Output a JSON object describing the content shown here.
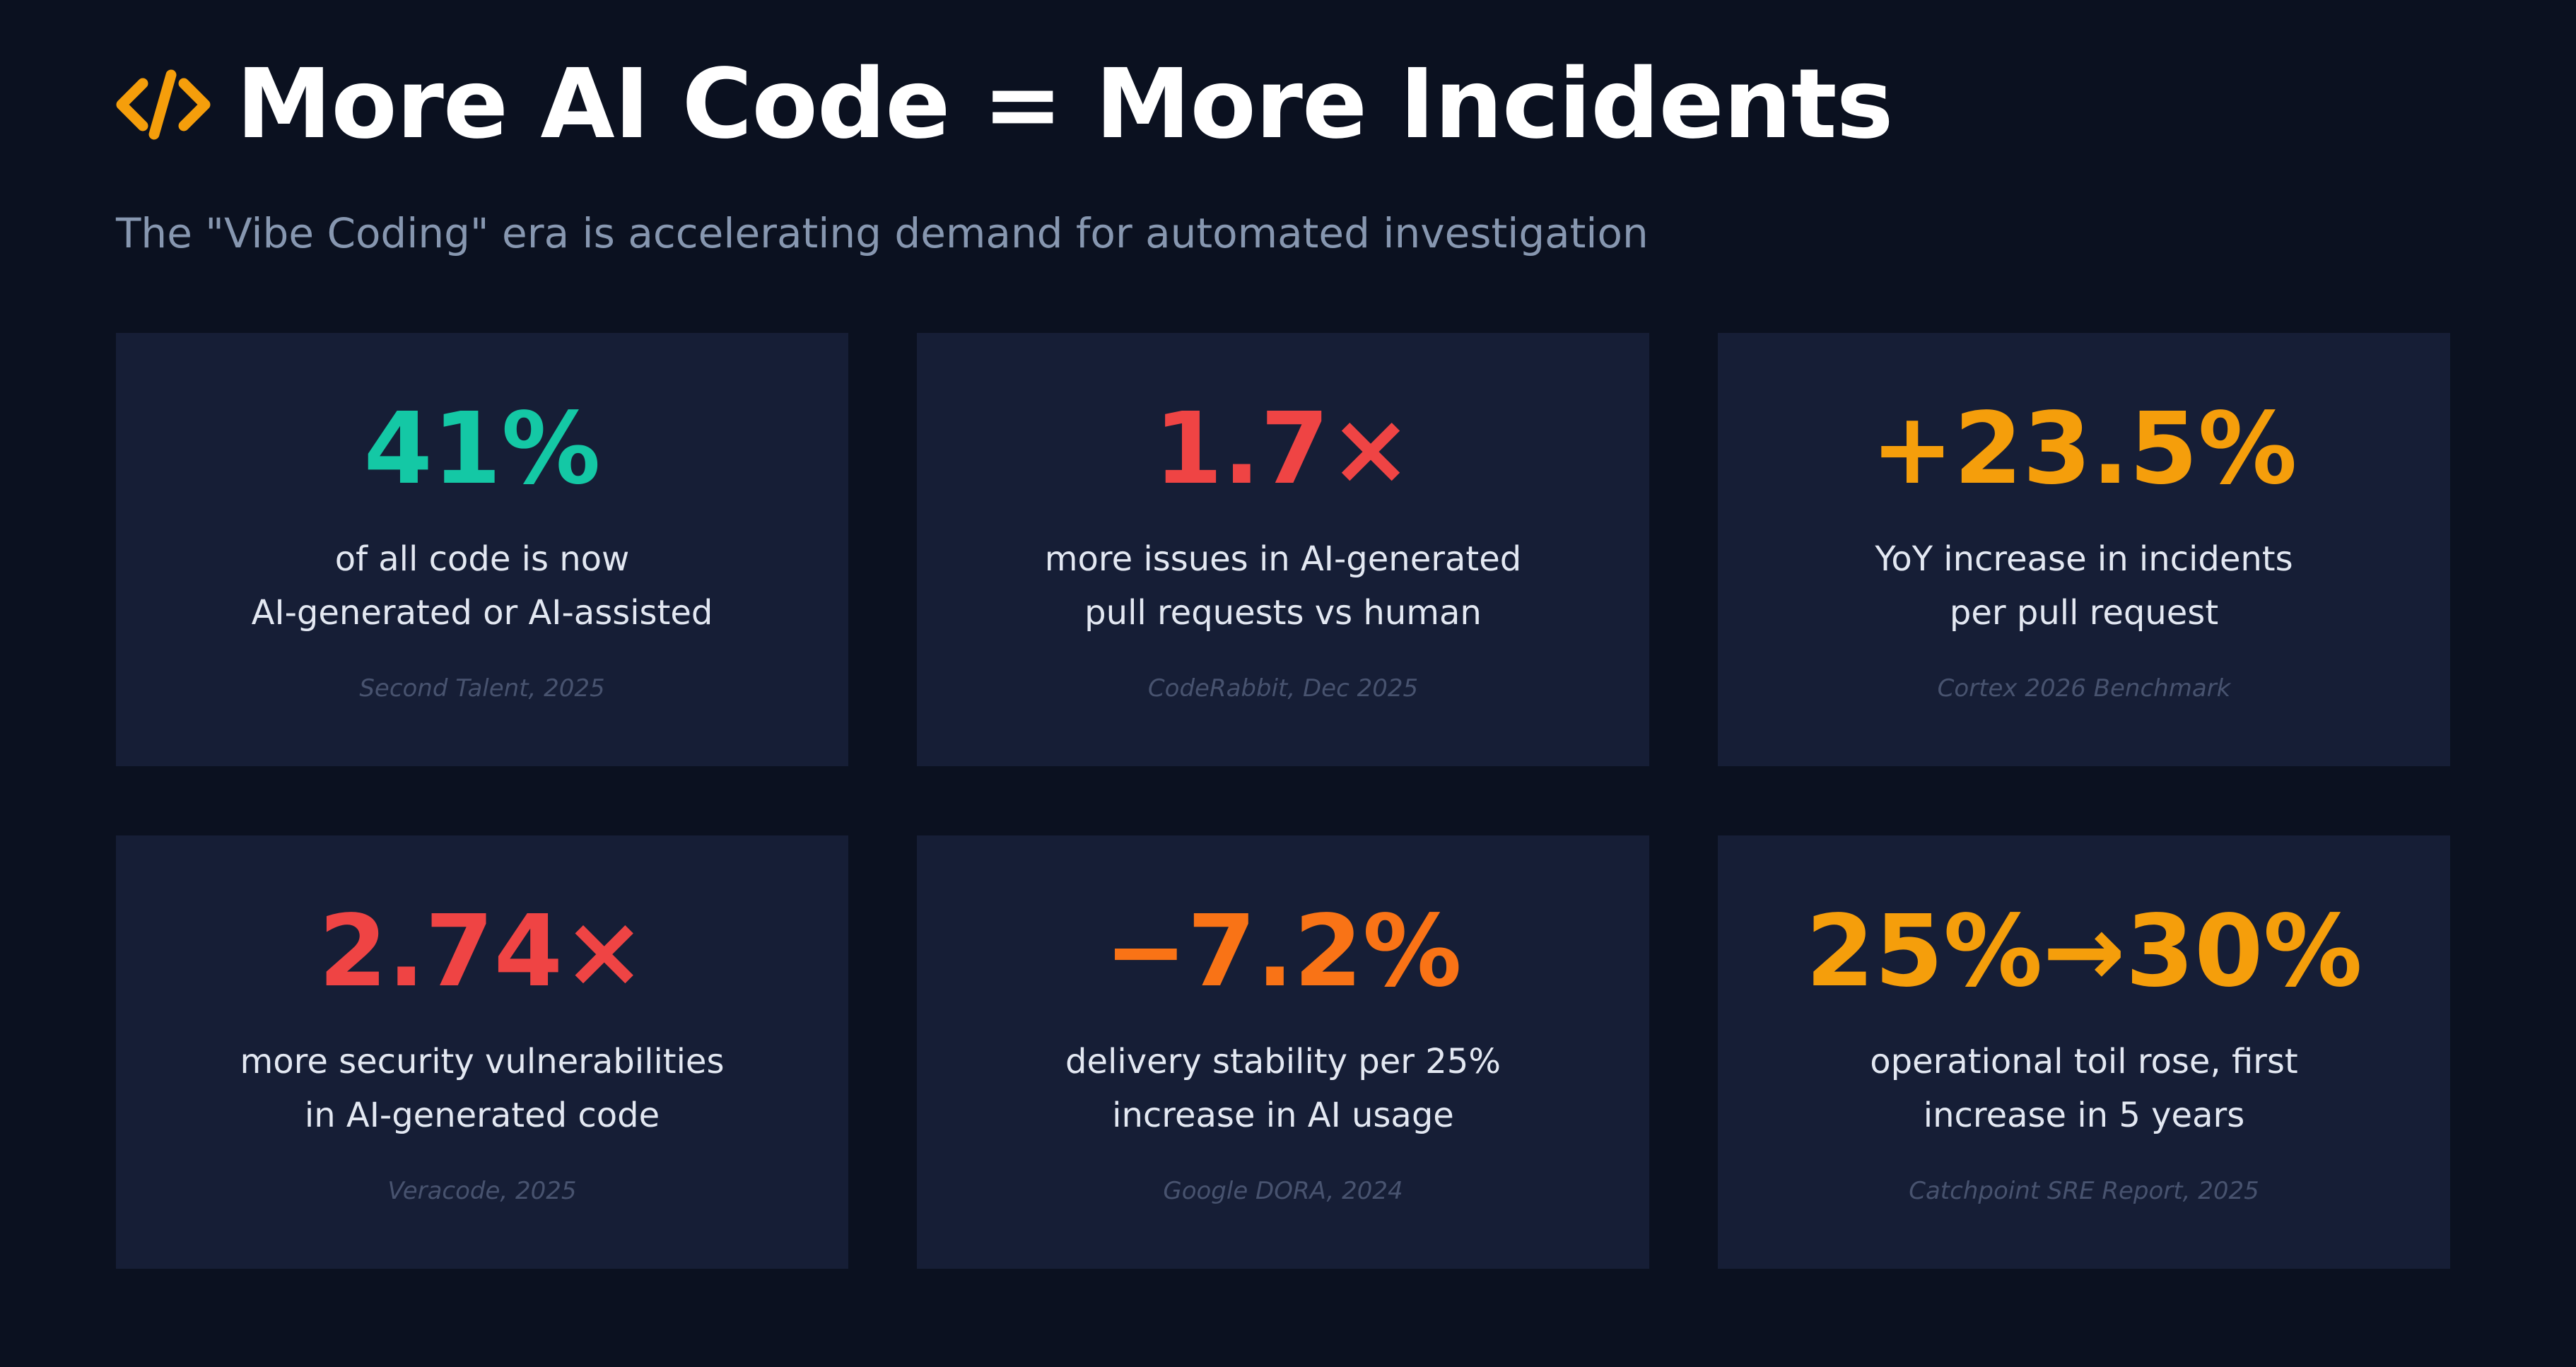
{
  "header": {
    "icon": "code-brackets-icon",
    "title": "More AI Code = More Incidents",
    "subtitle": "The \"Vibe Coding\" era is accelerating demand for automated investigation"
  },
  "colors": {
    "background": "#0b1120",
    "card": "#161e36",
    "icon": "#f59e0b",
    "teal": "#14c8a5",
    "red": "#ef4444",
    "amber": "#f59e0b",
    "orange": "#f97316",
    "subtitle": "#8797b0",
    "source": "#48536f"
  },
  "stats": [
    {
      "value": "41%",
      "color": "#14c8a5",
      "line1": "of all code is now",
      "line2": "AI-generated or AI-assisted",
      "source": "Second Talent, 2025"
    },
    {
      "value": "1.7×",
      "color": "#ef4444",
      "line1": "more issues in AI-generated",
      "line2": "pull requests vs human",
      "source": "CodeRabbit, Dec 2025"
    },
    {
      "value": "+23.5%",
      "color": "#f59e0b",
      "line1": "YoY increase in incidents",
      "line2": "per pull request",
      "source": "Cortex 2026 Benchmark"
    },
    {
      "value": "2.74×",
      "color": "#ef4444",
      "line1": "more security vulnerabilities",
      "line2": "in AI-generated code",
      "source": "Veracode, 2025"
    },
    {
      "value": "−7.2%",
      "color": "#f97316",
      "line1": "delivery stability per 25%",
      "line2": "increase in AI usage",
      "source": "Google DORA, 2024"
    },
    {
      "value": "25%→30%",
      "color": "#f59e0b",
      "line1": "operational toil rose, first",
      "line2": "increase in 5 years",
      "source": "Catchpoint SRE Report, 2025"
    }
  ]
}
